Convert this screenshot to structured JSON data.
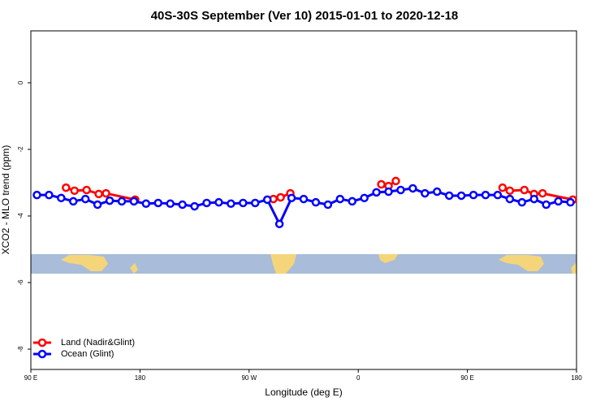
{
  "chart_data": {
    "type": "line",
    "title": "40S-30S September (Ver 10)   2015-01-01 to 2020-12-18",
    "xlabel": "Longitude (deg E)",
    "ylabel": "XCO2 - MLO trend (ppm)",
    "xlim": [
      90,
      540
    ],
    "ylim": [
      -8.61,
      1.56
    ],
    "xticks": [
      {
        "value": 90,
        "label": "90 E"
      },
      {
        "value": 180,
        "label": "180"
      },
      {
        "value": 270,
        "label": "90 W"
      },
      {
        "value": 360,
        "label": "0"
      },
      {
        "value": 450,
        "label": "90 E"
      },
      {
        "value": 540,
        "label": "180"
      }
    ],
    "yticks": [
      0,
      -2,
      -4,
      -6,
      -8
    ],
    "legend": "bottom-left",
    "series": [
      {
        "name": "Land (Nadir&Glint)",
        "color": "#ff0000",
        "x": [
          119,
          126,
          136,
          146,
          152,
          176,
          null,
          290,
          296,
          304,
          null,
          379,
          385,
          391,
          null,
          479,
          485,
          497,
          505,
          512,
          537
        ],
        "values": [
          -3.15,
          -3.24,
          -3.22,
          -3.34,
          -3.32,
          -3.51,
          null,
          -3.49,
          -3.44,
          -3.32,
          null,
          -3.05,
          -3.1,
          -2.95,
          null,
          -3.15,
          -3.24,
          -3.22,
          -3.34,
          -3.32,
          -3.51
        ]
      },
      {
        "name": "Ocean (Glint)",
        "color": "#0000ff",
        "x": [
          95,
          105,
          115,
          125,
          135,
          145,
          155,
          165,
          175,
          185,
          195,
          205,
          215,
          225,
          235,
          245,
          255,
          265,
          275,
          285,
          295,
          305,
          315,
          325,
          335,
          345,
          355,
          365,
          375,
          385,
          395,
          405,
          415,
          425,
          435,
          445,
          455,
          465,
          475,
          485,
          495,
          505,
          515,
          525,
          535
        ],
        "values": [
          -3.37,
          -3.37,
          -3.46,
          -3.56,
          -3.49,
          -3.66,
          -3.54,
          -3.56,
          -3.56,
          -3.63,
          -3.61,
          -3.63,
          -3.66,
          -3.71,
          -3.61,
          -3.59,
          -3.63,
          -3.61,
          -3.61,
          -3.51,
          -4.24,
          -3.46,
          -3.49,
          -3.59,
          -3.66,
          -3.49,
          -3.56,
          -3.46,
          -3.29,
          -3.27,
          -3.22,
          -3.17,
          -3.32,
          -3.27,
          -3.39,
          -3.39,
          -3.37,
          -3.37,
          -3.37,
          -3.49,
          -3.59,
          -3.49,
          -3.66,
          -3.56,
          -3.59
        ]
      }
    ]
  }
}
